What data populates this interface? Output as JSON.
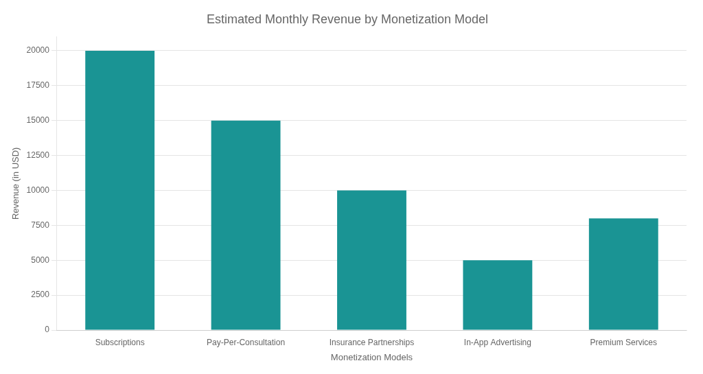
{
  "chart_data": {
    "type": "bar",
    "title": "Estimated Monthly Revenue by Monetization Model",
    "xlabel": "Monetization Models",
    "ylabel": "Revenue (in USD)",
    "categories": [
      "Subscriptions",
      "Pay-Per-Consultation",
      "Insurance Partnerships",
      "In-App Advertising",
      "Premium Services"
    ],
    "values": [
      20000,
      15000,
      10000,
      5000,
      8000
    ],
    "color": "#1a9494",
    "ylim": [
      0,
      21000
    ],
    "yticks": [
      0,
      2500,
      5000,
      7500,
      10000,
      12500,
      15000,
      17500,
      20000
    ],
    "grid": true
  }
}
